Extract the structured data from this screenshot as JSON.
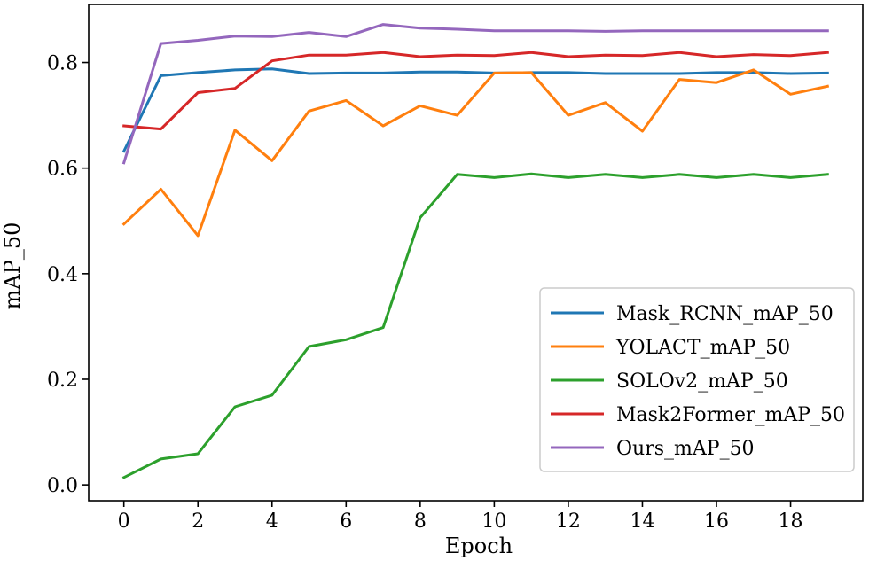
{
  "chart_data": {
    "type": "line",
    "title": "",
    "xlabel": "Epoch",
    "ylabel": "mAP_50",
    "xlim": [
      -0.95,
      19.95
    ],
    "ylim": [
      -0.03,
      0.91
    ],
    "xticks": [
      0,
      2,
      4,
      6,
      8,
      10,
      12,
      14,
      16,
      18
    ],
    "xtick_labels": [
      "0",
      "2",
      "4",
      "6",
      "8",
      "10",
      "12",
      "14",
      "16",
      "18"
    ],
    "yticks": [
      0.0,
      0.2,
      0.4,
      0.6,
      0.8
    ],
    "ytick_labels": [
      "0.0",
      "0.2",
      "0.4",
      "0.6",
      "0.8"
    ],
    "grid": false,
    "legend_position": "lower-right",
    "x": [
      0,
      1,
      2,
      3,
      4,
      5,
      6,
      7,
      8,
      9,
      10,
      11,
      12,
      13,
      14,
      15,
      16,
      17,
      18,
      19
    ],
    "series": [
      {
        "name": "Mask_RCNN_mAP_50",
        "color": "#1f77b4",
        "values": [
          0.632,
          0.775,
          0.781,
          0.786,
          0.788,
          0.779,
          0.78,
          0.78,
          0.782,
          0.782,
          0.78,
          0.781,
          0.781,
          0.779,
          0.779,
          0.779,
          0.781,
          0.781,
          0.779,
          0.78
        ]
      },
      {
        "name": "YOLACT_mAP_50",
        "color": "#ff7f0e",
        "values": [
          0.494,
          0.56,
          0.472,
          0.672,
          0.614,
          0.708,
          0.728,
          0.68,
          0.718,
          0.7,
          0.78,
          0.781,
          0.7,
          0.724,
          0.67,
          0.768,
          0.762,
          0.786,
          0.74,
          0.755
        ]
      },
      {
        "name": "SOLOv2_mAP_50",
        "color": "#2ca02c",
        "values": [
          0.014,
          0.049,
          0.059,
          0.148,
          0.17,
          0.262,
          0.275,
          0.298,
          0.506,
          0.588,
          0.582,
          0.589,
          0.582,
          0.588,
          0.582,
          0.588,
          0.582,
          0.588,
          0.582,
          0.588
        ]
      },
      {
        "name": "Mask2Former_mAP_50",
        "color": "#d62728",
        "values": [
          0.68,
          0.674,
          0.743,
          0.751,
          0.803,
          0.814,
          0.814,
          0.819,
          0.811,
          0.814,
          0.813,
          0.819,
          0.811,
          0.814,
          0.813,
          0.819,
          0.811,
          0.815,
          0.813,
          0.819
        ]
      },
      {
        "name": "Ours_mAP_50",
        "color": "#9467bd",
        "values": [
          0.61,
          0.836,
          0.842,
          0.85,
          0.849,
          0.857,
          0.849,
          0.872,
          0.865,
          0.863,
          0.86,
          0.86,
          0.86,
          0.859,
          0.86,
          0.86,
          0.86,
          0.86,
          0.86,
          0.86
        ]
      }
    ]
  }
}
